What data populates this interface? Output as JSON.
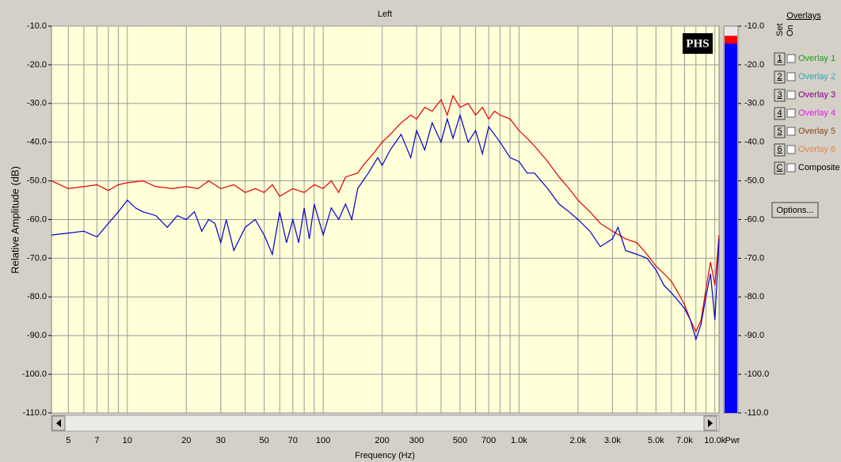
{
  "chart_data": {
    "type": "line",
    "title": "Left",
    "x_label": "Frequency (Hz)",
    "y_label": "Relative Amplitude (dB)",
    "log_x": true,
    "grid": true,
    "xlim": [
      4.1,
      10500
    ],
    "ylim": [
      -110,
      -10
    ],
    "xticks": [
      5,
      7,
      10,
      20,
      30,
      50,
      70,
      100,
      200,
      300,
      500,
      700,
      {
        "value": 1000,
        "label": "1.0k"
      },
      {
        "value": 2000,
        "label": "2.0k"
      },
      {
        "value": 3000,
        "label": "3.0k"
      },
      {
        "value": 5000,
        "label": "5.0k"
      },
      {
        "value": 7000,
        "label": "7.0k"
      },
      {
        "value": 10000,
        "label": "10.0k"
      }
    ],
    "xminorticks": [
      6,
      8,
      9,
      40,
      60,
      80,
      90,
      400,
      600,
      800,
      900,
      4000,
      6000,
      8000,
      9000
    ],
    "yticks": [
      {
        "value": -10,
        "label": "-10.0"
      },
      {
        "value": -20,
        "label": "-20.0"
      },
      {
        "value": -30,
        "label": "-30.0"
      },
      {
        "value": -40,
        "label": "-40.0"
      },
      {
        "value": -50,
        "label": "-50.0"
      },
      {
        "value": -60,
        "label": "-60.0"
      },
      {
        "value": -70,
        "label": "-70.0"
      },
      {
        "value": -80,
        "label": "-80.0"
      },
      {
        "value": -90,
        "label": "-90.0"
      },
      {
        "value": -100,
        "label": "-100.0"
      },
      {
        "value": -110,
        "label": "-110.0"
      }
    ],
    "series": [
      {
        "color": "#e00000",
        "x": [
          4.1,
          5,
          6,
          7,
          8,
          9,
          10,
          12,
          14,
          17,
          20,
          23,
          26,
          30,
          35,
          40,
          45,
          50,
          55,
          60,
          70,
          80,
          90,
          100,
          110,
          120,
          130,
          150,
          160,
          180,
          200,
          220,
          250,
          280,
          300,
          330,
          360,
          400,
          430,
          460,
          500,
          550,
          600,
          650,
          700,
          750,
          800,
          900,
          1000,
          1100,
          1200,
          1400,
          1600,
          1800,
          2000,
          2300,
          2600,
          3000,
          3500,
          4000,
          4500,
          5000,
          5500,
          6000,
          6500,
          7000,
          7500,
          8000,
          8500,
          9000,
          9500,
          10000,
          10500
        ],
        "values": [
          -50,
          -52,
          -51.5,
          -51,
          -52.5,
          -51,
          -50.5,
          -50,
          -51.5,
          -52,
          -51.5,
          -52,
          -50,
          -52,
          -51,
          -53,
          -52,
          -53,
          -51,
          -54,
          -52,
          -53,
          -51,
          -52,
          -50,
          -53,
          -49,
          -48,
          -46,
          -43,
          -40,
          -38,
          -35,
          -33,
          -34,
          -31,
          -32,
          -29,
          -33,
          -28,
          -31,
          -30,
          -33,
          -31,
          -34,
          -32,
          -33,
          -34,
          -37,
          -39,
          -41,
          -45,
          -49,
          -52,
          -55,
          -58,
          -61,
          -63,
          -65,
          -66,
          -69,
          -72,
          -74,
          -76,
          -79,
          -82,
          -86,
          -89,
          -86,
          -78,
          -71,
          -77,
          -64
        ]
      },
      {
        "color": "#0000d0",
        "x": [
          4.1,
          5,
          6,
          7,
          8,
          9,
          10,
          11,
          12,
          14,
          16,
          18,
          20,
          22,
          24,
          26,
          28,
          30,
          32,
          35,
          40,
          45,
          50,
          55,
          60,
          65,
          70,
          75,
          80,
          85,
          90,
          100,
          110,
          120,
          130,
          140,
          150,
          170,
          190,
          200,
          220,
          250,
          280,
          300,
          330,
          360,
          400,
          430,
          460,
          500,
          550,
          600,
          650,
          700,
          800,
          900,
          1000,
          1100,
          1200,
          1400,
          1600,
          1800,
          2000,
          2300,
          2600,
          3000,
          3200,
          3500,
          4000,
          4500,
          5000,
          5500,
          6000,
          6500,
          7000,
          7500,
          8000,
          8500,
          9000,
          9500,
          10000,
          10500
        ],
        "values": [
          -64,
          -63.5,
          -63,
          -64.5,
          -61,
          -58,
          -55,
          -57,
          -58,
          -59,
          -62,
          -59,
          -60,
          -58,
          -63,
          -60,
          -61,
          -66,
          -60,
          -68,
          -62,
          -60,
          -64,
          -69,
          -58,
          -66,
          -60,
          -66,
          -57,
          -65,
          -56,
          -64,
          -57,
          -60,
          -56,
          -60,
          -52,
          -48,
          -44,
          -46,
          -42,
          -38,
          -44,
          -37,
          -42,
          -35,
          -40,
          -34,
          -39,
          -33,
          -40,
          -37,
          -43,
          -36,
          -40,
          -44,
          -45,
          -48,
          -48,
          -52,
          -56,
          -58,
          -60,
          -63,
          -67,
          -65,
          -62,
          -68,
          -69,
          -70,
          -73,
          -77,
          -79,
          -81,
          -83,
          -86,
          -91,
          -87,
          -80,
          -74,
          -86,
          -65
        ]
      }
    ]
  },
  "meter": {
    "label": "Pwr",
    "level": -14.5,
    "peak": -12.5,
    "ylim": [
      -110,
      -10
    ],
    "ticks": [
      {
        "value": -10,
        "label": "-10.0"
      },
      {
        "value": -20,
        "label": "-20.0"
      },
      {
        "value": -30,
        "label": "-30.0"
      },
      {
        "value": -40,
        "label": "-40.0"
      },
      {
        "value": -50,
        "label": "-50.0"
      },
      {
        "value": -60,
        "label": "-60.0"
      },
      {
        "value": -70,
        "label": "-70.0"
      },
      {
        "value": -80,
        "label": "-80.0"
      },
      {
        "value": -90,
        "label": "-90.0"
      },
      {
        "value": -100,
        "label": "-100.0"
      },
      {
        "value": -110,
        "label": "-110.0"
      }
    ]
  },
  "logo": "PHS",
  "overlays": {
    "title": "Overlays",
    "set_label": "Set",
    "on_label": "On",
    "button": "Options...",
    "rows": [
      {
        "key": "1",
        "label": "Overlay 1",
        "color": "#1a9a1a"
      },
      {
        "key": "2",
        "label": "Overlay 2",
        "color": "#30a8b8"
      },
      {
        "key": "3",
        "label": "Overlay 3",
        "color": "#800080"
      },
      {
        "key": "4",
        "label": "Overlay 4",
        "color": "#e020e0"
      },
      {
        "key": "5",
        "label": "Overlay 5",
        "color": "#8b4513"
      },
      {
        "key": "6",
        "label": "Overlay 6",
        "color": "#e08850"
      },
      {
        "key": "C",
        "label": "Composite",
        "color": "#000000"
      }
    ]
  }
}
